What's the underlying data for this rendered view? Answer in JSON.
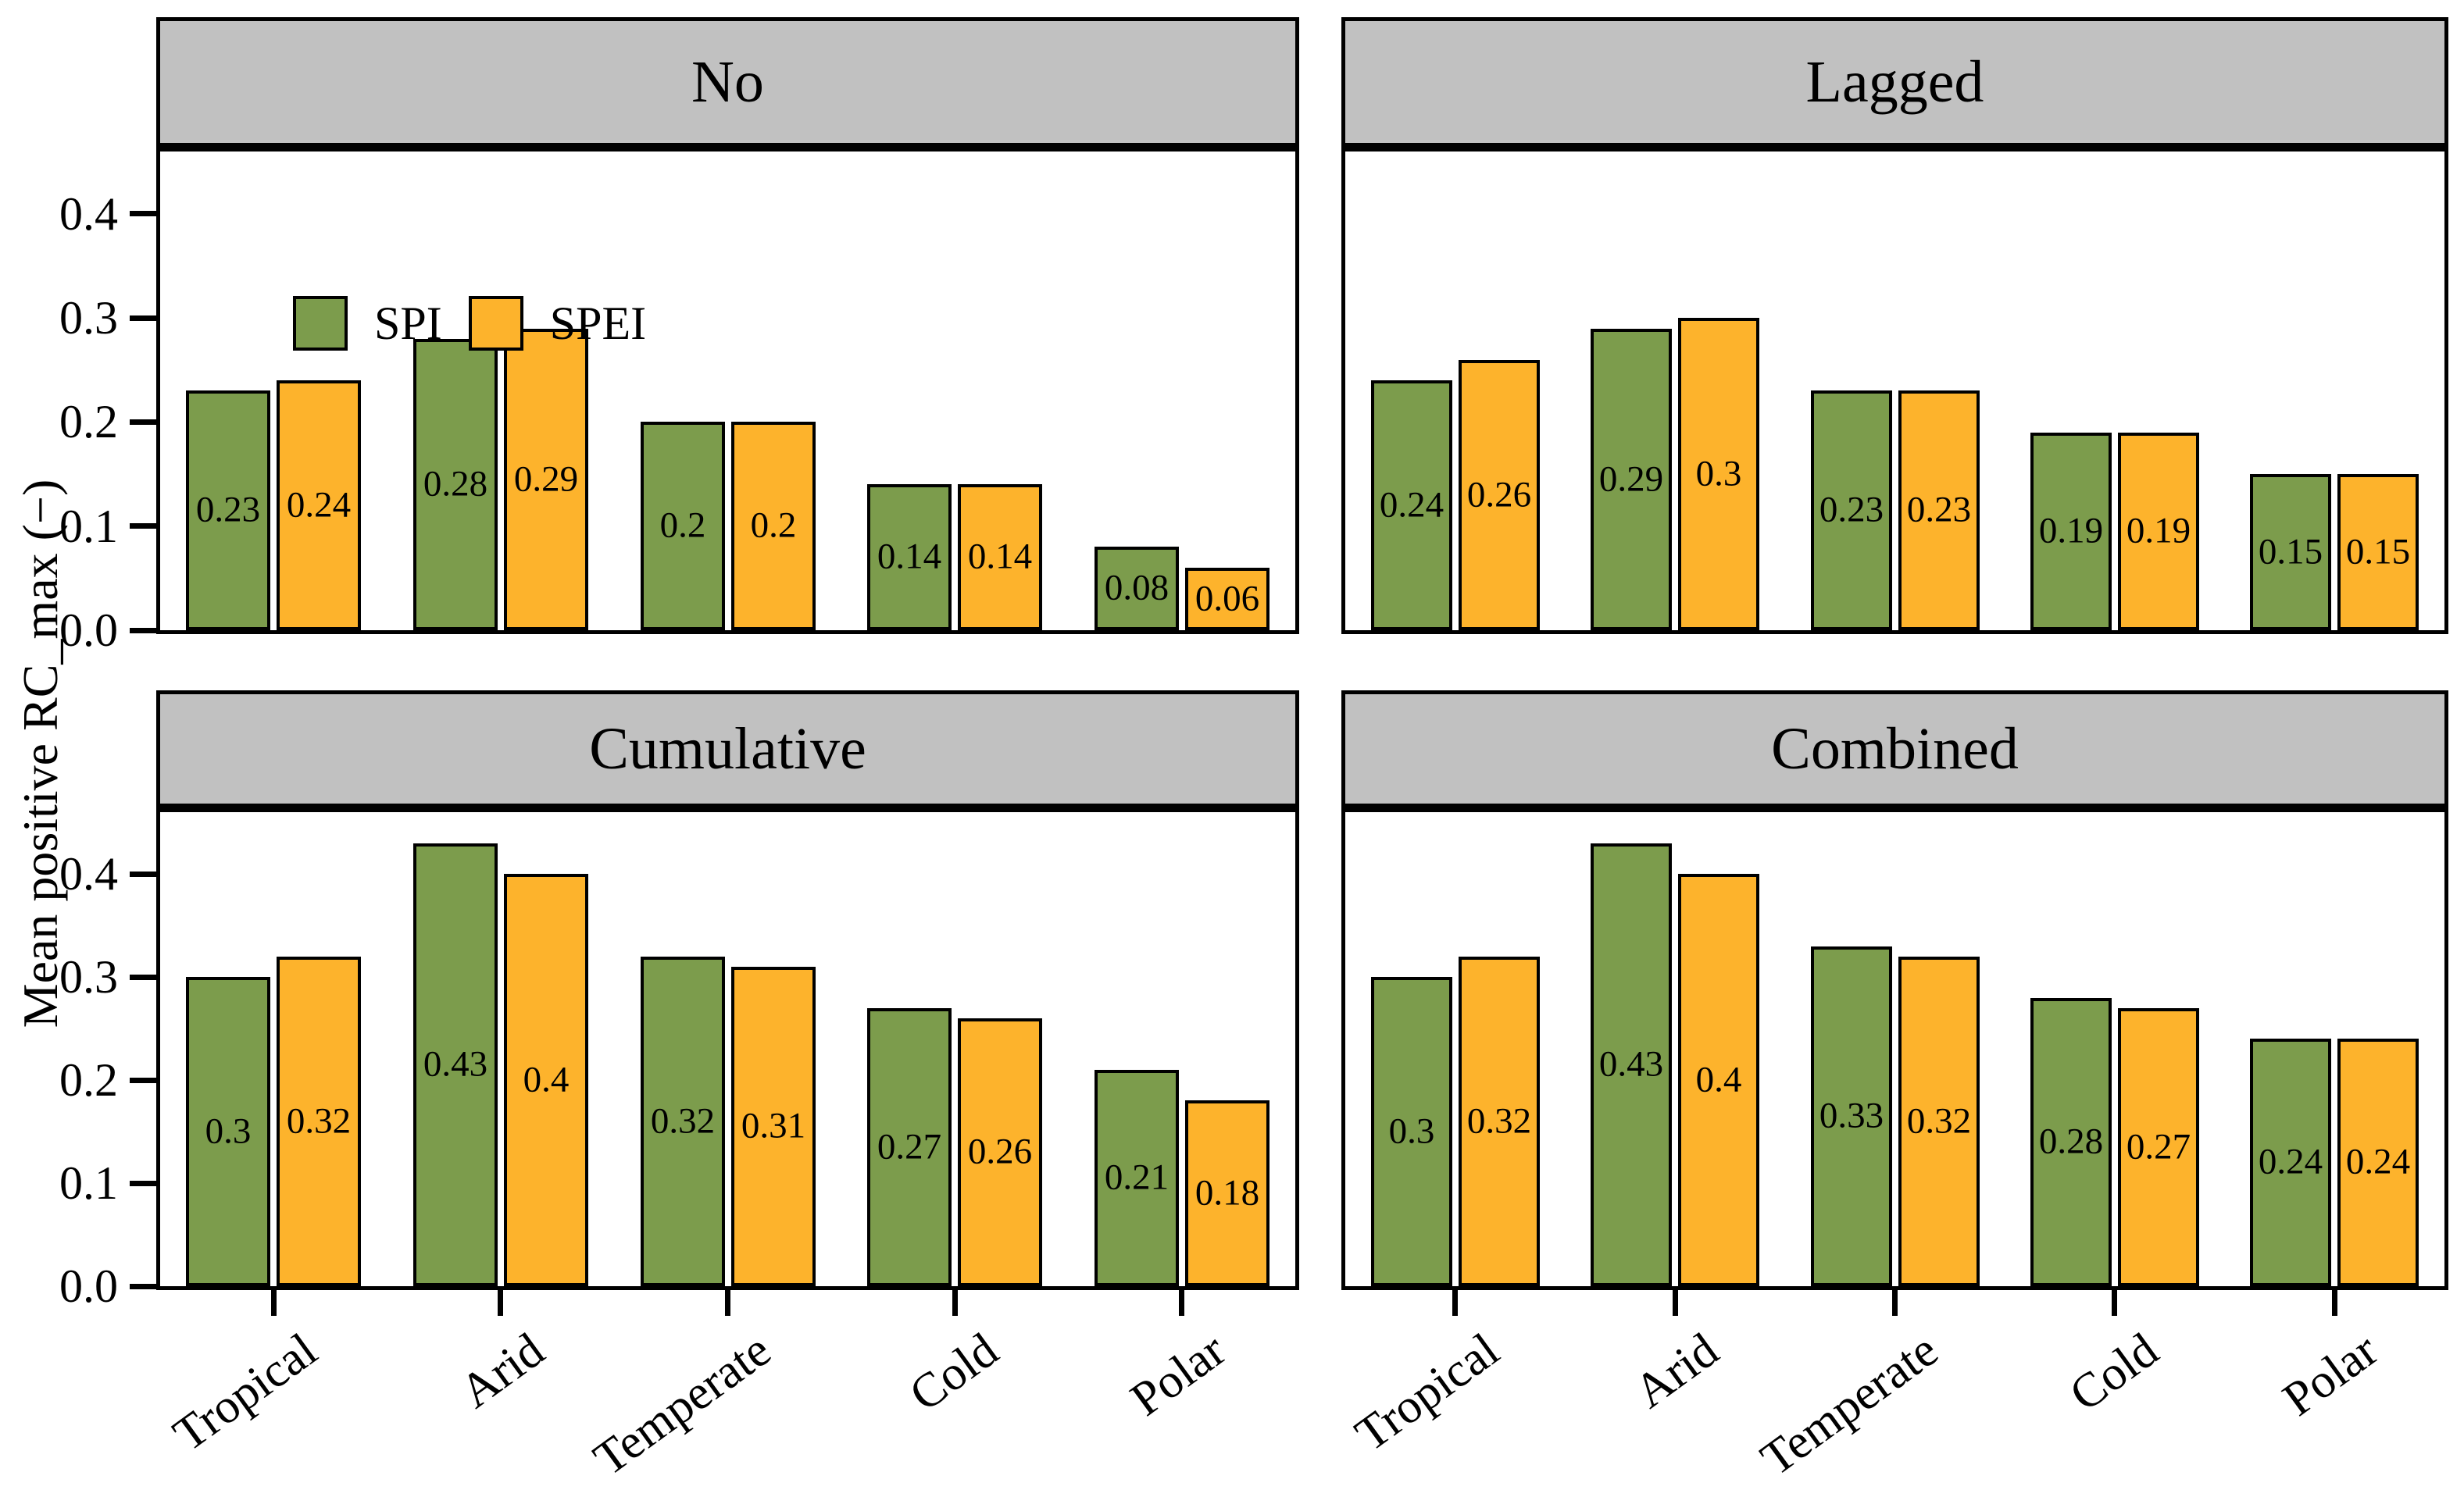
{
  "figure": {
    "ylabel": "Mean positive RC_max (−)",
    "categories": [
      "Tropical",
      "Arid",
      "Temperate",
      "Cold",
      "Polar"
    ],
    "ytick_labels": [
      "0.0",
      "0.1",
      "0.2",
      "0.3",
      "0.4"
    ],
    "legend": {
      "location": "inside-top-left-of-first-panel",
      "items": [
        {
          "label": "SPI",
          "color": "#7C9C4C"
        },
        {
          "label": "SPEI",
          "color": "#FDB32C"
        }
      ]
    },
    "colors": {
      "spi": "#7C9C4C",
      "spei": "#FDB32C",
      "header_bg": "#C1C1C1",
      "spine": "#000000",
      "plot_bg": "#FFFFFF"
    }
  },
  "chart_data": [
    {
      "type": "bar",
      "title": "No",
      "categories": [
        "Tropical",
        "Arid",
        "Temperate",
        "Cold",
        "Polar"
      ],
      "series": [
        {
          "name": "SPI",
          "color_key": "spi",
          "values": [
            0.23,
            0.28,
            0.2,
            0.14,
            0.08
          ]
        },
        {
          "name": "SPEI",
          "color_key": "spei",
          "values": [
            0.24,
            0.29,
            0.2,
            0.14,
            0.06
          ]
        }
      ],
      "ylim": [
        0,
        0.46
      ],
      "yticks": [
        0,
        0.1,
        0.2,
        0.3,
        0.4
      ],
      "value_labels": true,
      "show_legend": true
    },
    {
      "type": "bar",
      "title": "Lagged",
      "categories": [
        "Tropical",
        "Arid",
        "Temperate",
        "Cold",
        "Polar"
      ],
      "series": [
        {
          "name": "SPI",
          "color_key": "spi",
          "values": [
            0.24,
            0.29,
            0.23,
            0.19,
            0.15
          ]
        },
        {
          "name": "SPEI",
          "color_key": "spei",
          "values": [
            0.26,
            0.3,
            0.23,
            0.19,
            0.15
          ]
        }
      ],
      "ylim": [
        0,
        0.46
      ],
      "yticks": [
        0,
        0.1,
        0.2,
        0.3,
        0.4
      ],
      "value_labels": true,
      "show_legend": false
    },
    {
      "type": "bar",
      "title": "Cumulative",
      "categories": [
        "Tropical",
        "Arid",
        "Temperate",
        "Cold",
        "Polar"
      ],
      "series": [
        {
          "name": "SPI",
          "color_key": "spi",
          "values": [
            0.3,
            0.43,
            0.32,
            0.27,
            0.21
          ]
        },
        {
          "name": "SPEI",
          "color_key": "spei",
          "values": [
            0.32,
            0.4,
            0.31,
            0.26,
            0.18
          ]
        }
      ],
      "ylim": [
        0,
        0.46
      ],
      "yticks": [
        0,
        0.1,
        0.2,
        0.3,
        0.4
      ],
      "value_labels": true,
      "show_legend": false
    },
    {
      "type": "bar",
      "title": "Combined",
      "categories": [
        "Tropical",
        "Arid",
        "Temperate",
        "Cold",
        "Polar"
      ],
      "series": [
        {
          "name": "SPI",
          "color_key": "spi",
          "values": [
            0.3,
            0.43,
            0.33,
            0.28,
            0.24
          ]
        },
        {
          "name": "SPEI",
          "color_key": "spei",
          "values": [
            0.32,
            0.4,
            0.32,
            0.27,
            0.24
          ]
        }
      ],
      "ylim": [
        0,
        0.46
      ],
      "yticks": [
        0,
        0.1,
        0.2,
        0.3,
        0.4
      ],
      "value_labels": true,
      "show_legend": false
    }
  ]
}
